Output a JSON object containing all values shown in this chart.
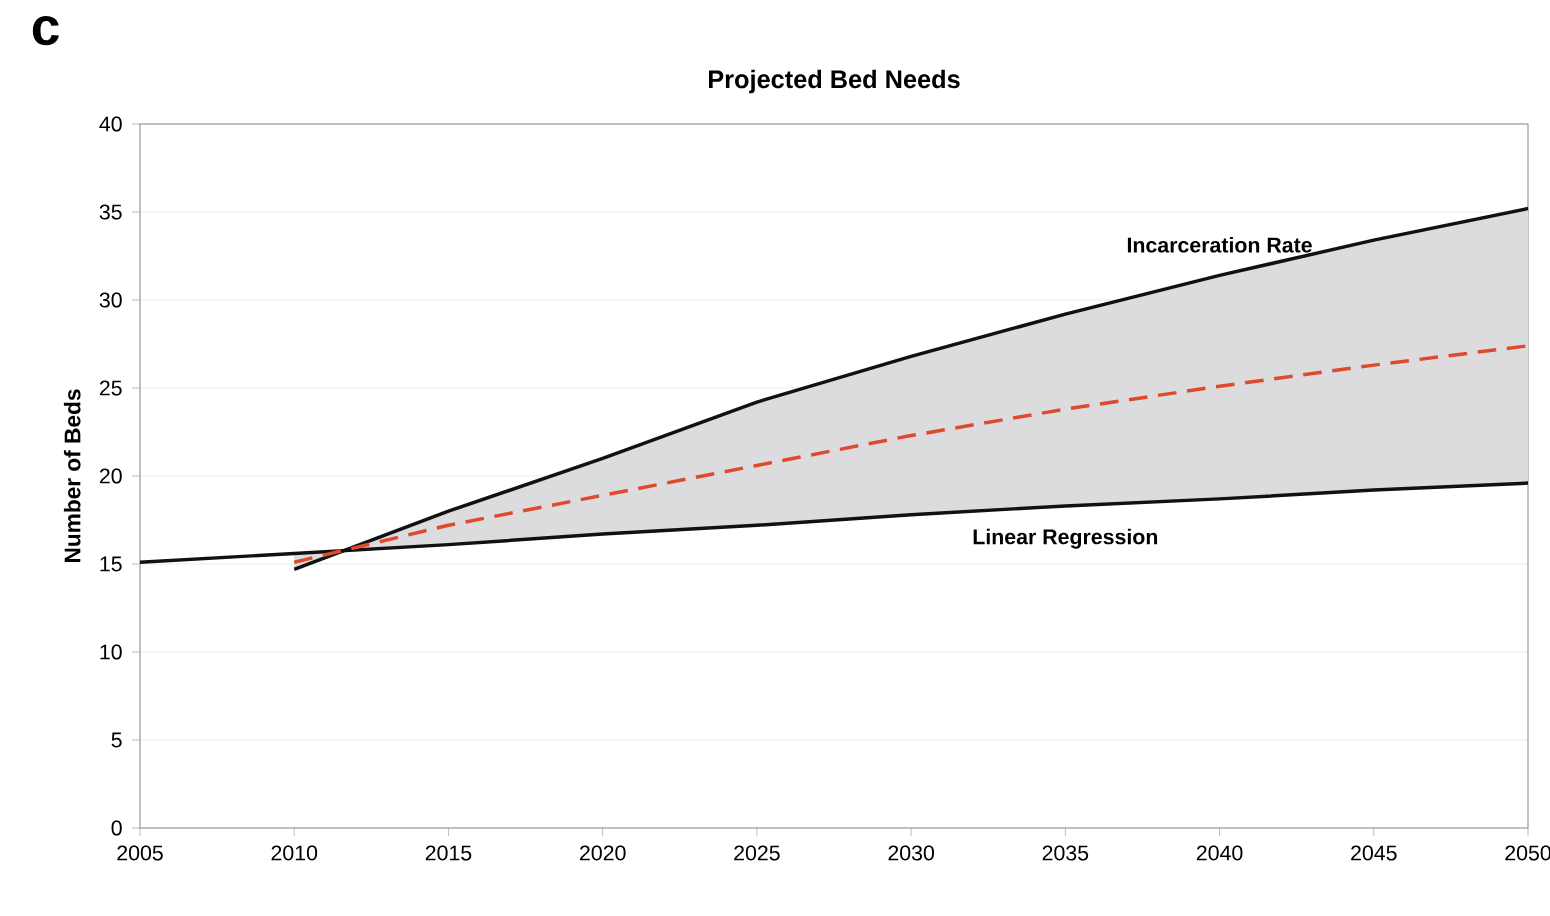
{
  "chart_data": {
    "type": "line",
    "title": "Projected Bed Needs",
    "ylabel": "Number of Beds",
    "annotations": [
      "c"
    ],
    "xlim": [
      2005,
      2050
    ],
    "xticks": [
      2005,
      2010,
      2015,
      2020,
      2025,
      2030,
      2035,
      2040,
      2045,
      2050
    ],
    "ylim": [
      0,
      40
    ],
    "yticks": [
      0,
      5,
      10,
      15,
      20,
      25,
      30,
      35,
      40
    ],
    "grid": "y",
    "series": [
      {
        "name": "Linear Regression",
        "color": "#111111",
        "line_style": "solid",
        "x": [
          2005,
          2010,
          2015,
          2020,
          2025,
          2030,
          2035,
          2040,
          2045,
          2050
        ],
        "values": [
          15.1,
          15.6,
          16.1,
          16.7,
          17.2,
          17.8,
          18.3,
          18.7,
          19.2,
          19.6
        ]
      },
      {
        "name": "Incarceration Rate",
        "color": "#111111",
        "line_style": "solid",
        "x": [
          2010,
          2015,
          2020,
          2025,
          2030,
          2035,
          2040,
          2045,
          2050
        ],
        "values": [
          14.7,
          18.0,
          21.0,
          24.2,
          26.8,
          29.2,
          31.4,
          33.4,
          35.2
        ]
      },
      {
        "color": "#e04a2c",
        "line_style": "dashed",
        "x": [
          2010,
          2015,
          2020,
          2025,
          2030,
          2035,
          2040,
          2045,
          2050
        ],
        "values": [
          15.1,
          17.2,
          18.9,
          20.6,
          22.3,
          23.8,
          25.1,
          26.3,
          27.4
        ],
        "lower": [
          15.6,
          16.1,
          16.7,
          17.2,
          17.8,
          18.3,
          18.7,
          19.2,
          19.6
        ],
        "upper": [
          14.7,
          18.0,
          21.0,
          24.2,
          26.8,
          29.2,
          31.4,
          33.4,
          35.2
        ]
      }
    ]
  }
}
